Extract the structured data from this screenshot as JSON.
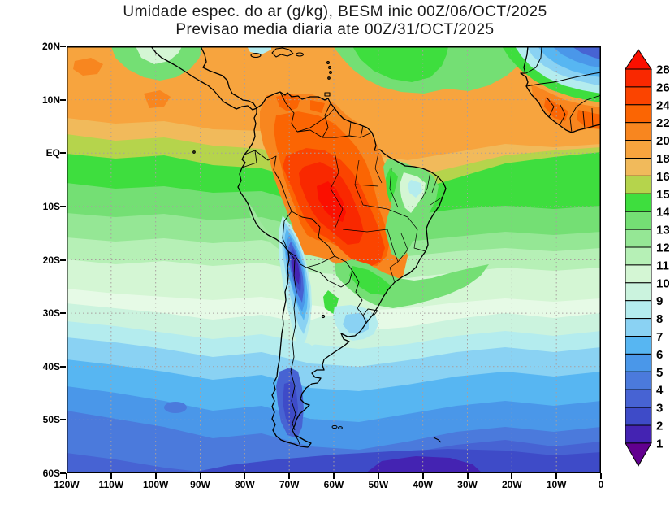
{
  "title": {
    "line1": "Umidade espec. do ar (g/kg), BESM inic 00Z/06/OCT/2025",
    "line2": "Previsao media diaria ate 00Z/31/OCT/2025"
  },
  "axes": {
    "y_labels": [
      "20N",
      "10N",
      "EQ",
      "10S",
      "20S",
      "30S",
      "40S",
      "50S",
      "60S"
    ],
    "x_labels": [
      "120W",
      "110W",
      "100W",
      "90W",
      "80W",
      "70W",
      "60W",
      "50W",
      "40W",
      "30W",
      "20W",
      "10W",
      "0"
    ]
  },
  "colorbar": {
    "labels": [
      "28",
      "26",
      "24",
      "22",
      "20",
      "18",
      "16",
      "15",
      "14",
      "13",
      "12",
      "11",
      "10",
      "9",
      "8",
      "7",
      "6",
      "5",
      "4",
      "3",
      "2",
      "1"
    ],
    "top_triangle_color": "#FB0F00",
    "bottom_triangle_color": "#62008F",
    "segment_colors": [
      "#F92800",
      "#FB4400",
      "#FB6503",
      "#F8861F",
      "#F7A43E",
      "#F1BA5B",
      "#B5D44C",
      "#3EDE3E",
      "#74DF74",
      "#95E795",
      "#B6F0B6",
      "#D4F6D4",
      "#CBF3DE",
      "#B4ECEE",
      "#8AD2F3",
      "#57B6F2",
      "#4A97E9",
      "#4B7ADC",
      "#4763D3",
      "#3E4BC8",
      "#4423B2"
    ]
  },
  "chart_data": {
    "type": "heatmap",
    "title": "Umidade espec. do ar (g/kg), BESM inic 00Z/06/OCT/2025",
    "subtitle": "Previsao media diaria ate 00Z/31/OCT/2025",
    "variable": "Umidade especifica do ar (g/kg)",
    "model": "BESM",
    "init_time": "00Z/06/OCT/2025",
    "valid_through": "00Z/31/OCT/2025",
    "x_ticks": [
      "120W",
      "110W",
      "100W",
      "90W",
      "80W",
      "70W",
      "60W",
      "50W",
      "40W",
      "30W",
      "20W",
      "10W",
      "0"
    ],
    "y_ticks": [
      "20N",
      "10N",
      "EQ",
      "10S",
      "20S",
      "30S",
      "40S",
      "50S",
      "60S"
    ],
    "lon_range_deg": [
      -120,
      0
    ],
    "lat_range_deg": [
      -60,
      20
    ],
    "grid": "dotted, every 10 degrees",
    "legend_position": "right vertical colorbar with over/under triangles",
    "levels_g_per_kg": [
      1,
      2,
      3,
      4,
      5,
      6,
      7,
      8,
      9,
      10,
      11,
      12,
      13,
      14,
      15,
      16,
      18,
      20,
      22,
      24,
      26,
      28
    ],
    "palette_top_to_bottom": [
      "#FB0F00",
      "#F92800",
      "#FB4400",
      "#FB6503",
      "#F8861F",
      "#F7A43E",
      "#F1BA5B",
      "#B5D44C",
      "#3EDE3E",
      "#74DF74",
      "#95E795",
      "#B6F0B6",
      "#D4F6D4",
      "#CBF3DE",
      "#B4ECEE",
      "#8AD2F3",
      "#57B6F2",
      "#4A97E9",
      "#4B7ADC",
      "#4763D3",
      "#3E4BC8",
      "#4423B2",
      "#62008F"
    ],
    "field_summary": [
      "Humidity maximum 24-28 g/kg over the western and central Amazon basin near 5S-13S, 70W-55W",
      "18-22 g/kg band across the tropical Pacific/Atlantic ITCZ (5N-15N) and northern South America and the Guinea coast of Africa",
      "Very dry tongue 1-4 g/kg along the Andes/Atacama from about 14S to 35S near 70W-67W",
      "Dry 3-7 g/kg over the Sahara in the top-right corner (NW Africa)",
      "10-16 g/kg greens over the subtropical oceans (15S-30S), with 8-10 g/kg patch over Uruguay/Pampas",
      "Moisture decreases poleward to 1-3 g/kg near 55S-60S"
    ]
  }
}
